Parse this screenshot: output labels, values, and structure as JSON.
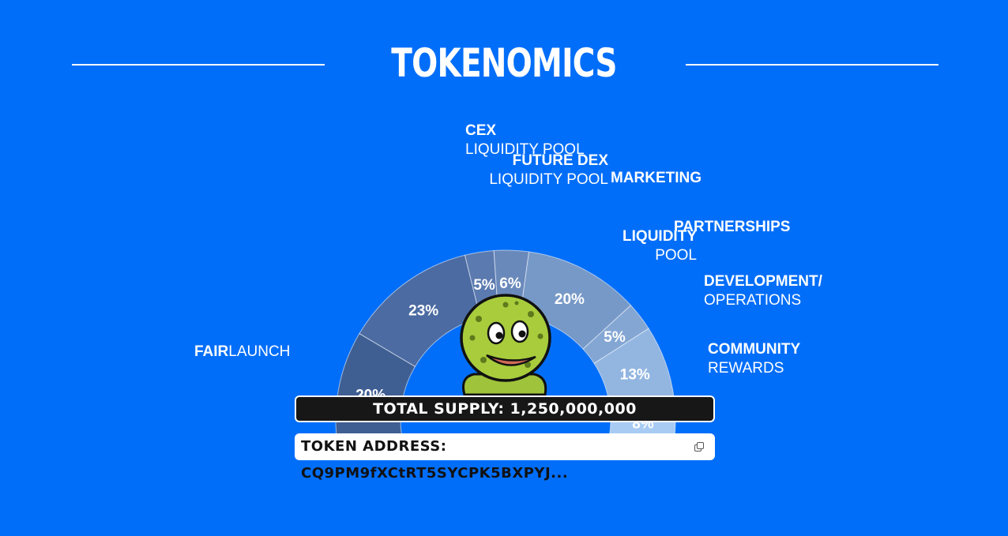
{
  "header": {
    "title": "TOKENOMICS"
  },
  "chart_data": {
    "type": "pie",
    "slices": [
      {
        "value": 20,
        "label": "20%",
        "name_bold": "FAIR",
        "name_rest": "LAUNCH",
        "color": "#3f5f93"
      },
      {
        "value": 23,
        "label": "23%",
        "name_bold": "LIQUIDITY",
        "name_rest": "POOL",
        "color": "#4b6ba2"
      },
      {
        "value": 5,
        "label": "5%",
        "name_bold": "FUTURE DEX",
        "name_rest": "LIQUIDITY POOL",
        "color": "#5b7aaf"
      },
      {
        "value": 6,
        "label": "6%",
        "name_bold": "CEX",
        "name_rest": "LIQUIDITY POOL",
        "color": "#6a89bb"
      },
      {
        "value": 20,
        "label": "20%",
        "name_bold": "MARKETING",
        "name_rest": "",
        "color": "#7799c7"
      },
      {
        "value": 5,
        "label": "5%",
        "name_bold": "PARTNERSHIPS",
        "name_rest": "",
        "color": "#84a6d3"
      },
      {
        "value": 13,
        "label": "13%",
        "name_bold": "DEVELOPMENT/",
        "name_rest": "OPERATIONS",
        "color": "#93b6e1"
      },
      {
        "value": 8,
        "label": "8%",
        "name_bold": "COMMUNITY",
        "name_rest": "REWARDS",
        "color": "#a8cbf3"
      }
    ]
  },
  "footer": {
    "supply": "TOTAL SUPPLY: 1,250,000,000",
    "address": "TOKEN ADDRESS: CQ9PM9fXCtRT5SYCPK5BXPYJ...",
    "copy_icon": "copy-icon"
  }
}
